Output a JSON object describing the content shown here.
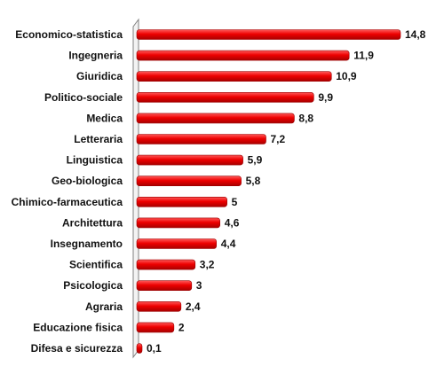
{
  "chart_data": {
    "type": "bar",
    "orientation": "horizontal",
    "title": "",
    "xlabel": "",
    "ylabel": "",
    "xlim": [
      0,
      14.8
    ],
    "grid": false,
    "legend": "none",
    "bar_color": "#e00000",
    "categories": [
      "Economico-statistica",
      "Ingegneria",
      "Giuridica",
      "Politico-sociale",
      "Medica",
      "Letteraria",
      "Linguistica",
      "Geo-biologica",
      "Chimico-farmaceutica",
      "Architettura",
      "Insegnamento",
      "Scientifica",
      "Psicologica",
      "Agraria",
      "Educazione fisica",
      "Difesa e sicurezza"
    ],
    "values": [
      14.8,
      11.9,
      10.9,
      9.9,
      8.8,
      7.2,
      5.9,
      5.8,
      5,
      4.6,
      4.4,
      3.2,
      3,
      2.4,
      2,
      0.1
    ],
    "value_labels": [
      "14,8",
      "11,9",
      "10,9",
      "9,9",
      "8,8",
      "7,2",
      "5,9",
      "5,8",
      "5",
      "4,6",
      "4,4",
      "3,2",
      "3",
      "2,4",
      "2",
      "0,1"
    ]
  }
}
